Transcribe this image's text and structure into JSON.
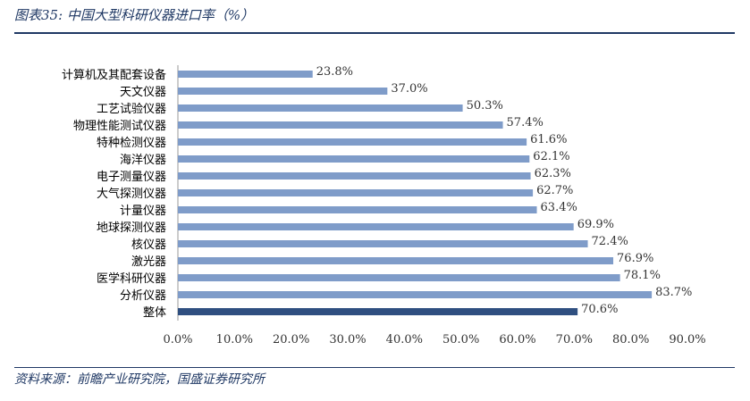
{
  "figure": {
    "title": "图表35:  中国大型科研仪器进口率（%）",
    "source": "资料来源：前瞻产业研究院，国盛证券研究所"
  },
  "colors": {
    "bar": "#7f9cc9",
    "bar_highlight": "#2f4f80",
    "accent": "#1f3864"
  },
  "chart_data": {
    "type": "bar",
    "orientation": "horizontal",
    "categories": [
      "计算机及其配套设备",
      "天文仪器",
      "工艺试验仪器",
      "物理性能测试仪器",
      "特种检测仪器",
      "海洋仪器",
      "电子测量仪器",
      "大气探测仪器",
      "计量仪器",
      "地球探测仪器",
      "核仪器",
      "激光器",
      "医学科研仪器",
      "分析仪器",
      "整体"
    ],
    "values": [
      23.8,
      37.0,
      50.3,
      57.4,
      61.6,
      62.1,
      62.3,
      62.7,
      63.4,
      69.9,
      72.4,
      76.9,
      78.1,
      83.7,
      70.6
    ],
    "value_labels": [
      "23.8%",
      "37.0%",
      "50.3%",
      "57.4%",
      "61.6%",
      "62.1%",
      "62.3%",
      "62.7%",
      "63.4%",
      "69.9%",
      "72.4%",
      "76.9%",
      "78.1%",
      "83.7%",
      "70.6%"
    ],
    "highlight_index": 14,
    "xlim": [
      0,
      90
    ],
    "ticks": [
      0,
      10,
      20,
      30,
      40,
      50,
      60,
      70,
      80,
      90
    ],
    "tick_labels": [
      "0.0%",
      "10.0%",
      "20.0%",
      "30.0%",
      "40.0%",
      "50.0%",
      "60.0%",
      "70.0%",
      "80.0%",
      "90.0%"
    ],
    "grid": false,
    "legend": "none"
  }
}
